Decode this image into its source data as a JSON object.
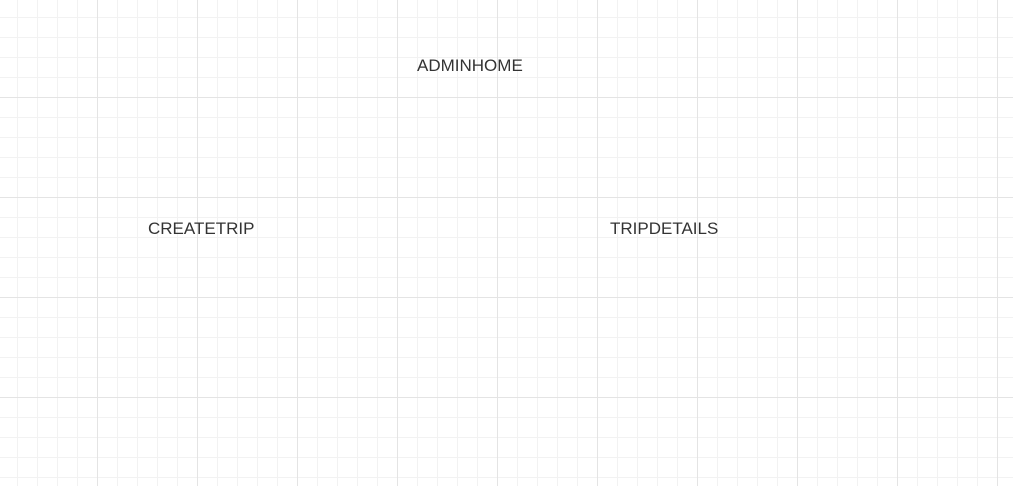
{
  "diagram": {
    "nodes": [
      {
        "id": "adminhome",
        "label": "ADMINHOME"
      },
      {
        "id": "createtrip",
        "label": "CREATETRIP"
      },
      {
        "id": "tripdetails",
        "label": "TRIPDETAILS"
      }
    ],
    "colors": {
      "background": "#ffffff",
      "grid_major": "#e4e4e4",
      "grid_minor": "#f2f2f2",
      "text": "#333333"
    }
  }
}
